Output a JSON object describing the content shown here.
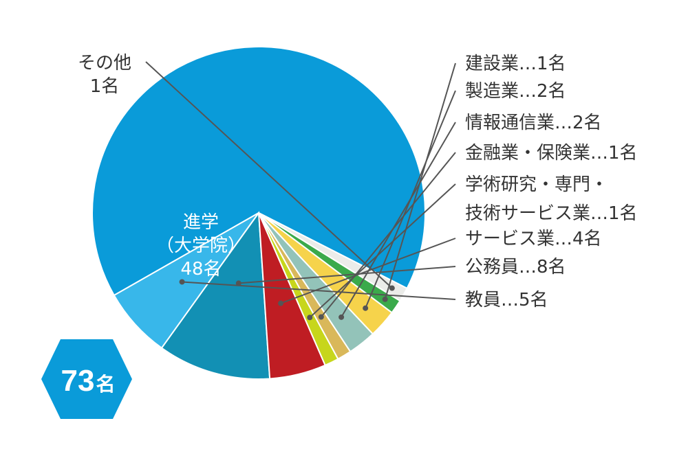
{
  "chart_data": {
    "type": "pie",
    "slices": [
      {
        "label": "進学\n（大学院）\n48名",
        "value": 48,
        "color": "#0A9BD9"
      },
      {
        "label": "教員…5名",
        "value": 5,
        "color": "#38B7EA"
      },
      {
        "label": "公務員…8名",
        "value": 8,
        "color": "#1290B4"
      },
      {
        "label": "サービス業…4名",
        "value": 4,
        "color": "#BF1D23"
      },
      {
        "label": "学術研究・専門・\n技術サービス業…1名",
        "value": 1,
        "color": "#C7D61C"
      },
      {
        "label": "金融業・保険業…1名",
        "value": 1,
        "color": "#D9B85A"
      },
      {
        "label": "情報通信業…2名",
        "value": 2,
        "color": "#93C3B9"
      },
      {
        "label": "製造業…2名",
        "value": 2,
        "color": "#F6D34B"
      },
      {
        "label": "建設業…1名",
        "value": 1,
        "color": "#3BAA4B"
      },
      {
        "label": "その他\n1名",
        "value": 1,
        "color": "#EBECE9"
      }
    ]
  },
  "badge": {
    "number": "73",
    "unit": "名",
    "color": "#0A9BD9"
  }
}
